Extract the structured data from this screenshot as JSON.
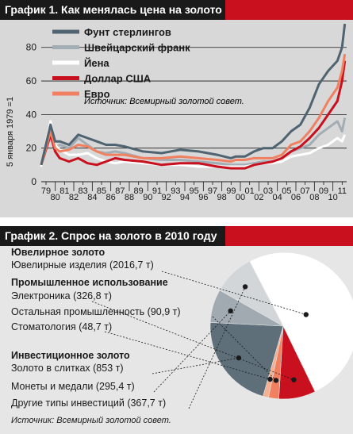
{
  "chart1": {
    "title": "График 1. Как менялась цена на золото",
    "ylabel": "5 января 1979 =1",
    "source": "Источник: Всемирный золотой совет.",
    "legend": [
      {
        "label": "Фунт стерлингов",
        "color": "#4f6470"
      },
      {
        "label": "Швейцарский франк",
        "color": "#a3adb4"
      },
      {
        "label": "Йена",
        "color": "#ffffff"
      },
      {
        "label": "Доллар США",
        "color": "#c8101e"
      },
      {
        "label": "Евро",
        "color": "#f08060"
      }
    ]
  },
  "chart_data": [
    {
      "type": "line",
      "title": "График 1. Как менялась цена на золото",
      "ylabel": "5 января 1979 =1",
      "xlabel": "",
      "ylim": [
        0,
        95
      ],
      "xlim": [
        1979,
        2012
      ],
      "yticks": [
        0,
        20,
        40,
        60,
        80
      ],
      "xticks": [
        "79",
        "80",
        "81",
        "82",
        "83",
        "84",
        "85",
        "86",
        "87",
        "88",
        "89",
        "90",
        "91",
        "92",
        "93",
        "94",
        "95",
        "96",
        "97",
        "98",
        "99",
        "00",
        "01",
        "02",
        "03",
        "04",
        "05",
        "06",
        "07",
        "08",
        "09",
        "10",
        "11"
      ],
      "legend_position": "top",
      "grid": "horizontal",
      "series": [
        {
          "name": "Швейцарский франк",
          "color": "#a3adb4",
          "x": [
            1979,
            1980,
            1980.5,
            1981,
            1982,
            1983,
            1984,
            1985,
            1986,
            1987,
            1988,
            1990,
            1992,
            1994,
            1996,
            1998,
            1999.5,
            2000,
            2001,
            2002,
            2003,
            2004,
            2005,
            2006,
            2007,
            2008,
            2009,
            2010,
            2011,
            2011.5,
            2011.8
          ],
          "values": [
            10,
            32,
            20,
            22,
            20,
            26,
            22,
            18,
            17,
            18,
            17,
            14,
            13,
            13,
            12,
            11,
            10,
            10,
            10,
            11,
            12,
            12,
            14,
            18,
            20,
            22,
            28,
            32,
            36,
            30,
            38
          ]
        },
        {
          "name": "Йена",
          "color": "#ffffff",
          "x": [
            1979,
            1980,
            1980.5,
            1981,
            1982,
            1983,
            1984,
            1985,
            1986,
            1987,
            1988,
            1990,
            1992,
            1994,
            1996,
            1998,
            1999.5,
            2000,
            2001,
            2002,
            2003,
            2004,
            2005,
            2006,
            2007,
            2008,
            2009,
            2010,
            2011,
            2011.5,
            2011.8
          ],
          "values": [
            9,
            36,
            22,
            19,
            16,
            16,
            17,
            14,
            12,
            11,
            12,
            11,
            10,
            10,
            9,
            9,
            9,
            9,
            9,
            10,
            11,
            11,
            12,
            15,
            16,
            17,
            20,
            22,
            26,
            24,
            28
          ]
        },
        {
          "name": "Доллар США",
          "color": "#c8101e",
          "x": [
            1979,
            1980,
            1980.5,
            1981,
            1982,
            1983,
            1984,
            1985,
            1986,
            1987,
            1988,
            1990,
            1992,
            1994,
            1996,
            1998,
            1999.5,
            2000,
            2001,
            2002,
            2003,
            2004,
            2005,
            2006,
            2007,
            2008,
            2009,
            2010,
            2011,
            2011.5,
            2011.8
          ],
          "values": [
            10,
            28,
            18,
            14,
            12,
            14,
            11,
            10,
            12,
            14,
            13,
            12,
            10,
            11,
            11,
            9,
            8,
            8,
            8,
            10,
            11,
            12,
            14,
            18,
            21,
            26,
            32,
            40,
            48,
            60,
            72
          ]
        },
        {
          "name": "Евро",
          "color": "#f08060",
          "x": [
            1979,
            1980,
            1980.5,
            1981,
            1982,
            1983,
            1984,
            1985,
            1986,
            1987,
            1988,
            1990,
            1992,
            1994,
            1996,
            1998,
            1999.5,
            2000,
            2001,
            2002,
            2003,
            2004,
            2005,
            2006,
            2007,
            2008,
            2009,
            2010,
            2011,
            2011.5,
            2011.8
          ],
          "values": [
            10,
            30,
            20,
            18,
            19,
            22,
            21,
            18,
            16,
            16,
            16,
            14,
            14,
            15,
            14,
            13,
            12,
            13,
            13,
            14,
            14,
            14,
            16,
            22,
            24,
            30,
            38,
            48,
            56,
            66,
            76
          ]
        },
        {
          "name": "Фунт стерлингов",
          "color": "#4f6470",
          "x": [
            1979,
            1980,
            1980.5,
            1981,
            1982,
            1983,
            1984,
            1985,
            1986,
            1987,
            1988,
            1990,
            1992,
            1994,
            1996,
            1998,
            1999.5,
            2000,
            2001,
            2002,
            2003,
            2004,
            2005,
            2006,
            2007,
            2008,
            2009,
            2010,
            2011,
            2011.5,
            2011.8
          ],
          "values": [
            10,
            34,
            24,
            24,
            22,
            28,
            26,
            24,
            22,
            22,
            21,
            18,
            17,
            19,
            18,
            16,
            14,
            15,
            15,
            18,
            20,
            20,
            24,
            30,
            34,
            44,
            58,
            66,
            72,
            80,
            94
          ]
        }
      ]
    },
    {
      "type": "pie",
      "title": "График 2. Спрос на золото в 2010 году",
      "categories": [
        "Ювелирные изделия",
        "Электроника",
        "Остальная промышленность",
        "Стоматология",
        "Золото в слитках",
        "Монеты и медали",
        "Другие типы инвестиций"
      ],
      "values": [
        2016.7,
        326.8,
        90.9,
        48.7,
        853,
        295.4,
        367.7
      ],
      "unit": "т"
    }
  ],
  "chart2": {
    "title": "График 2. Спрос на золото в 2010 году",
    "source": "Источник: Всемирный золотой совет.",
    "groups": [
      {
        "heading": "Ювелирное золото",
        "items": [
          "Ювелирные изделия (2016,7 т)"
        ]
      },
      {
        "heading": "Промышленное использование",
        "items": [
          "Электроника (326,8 т)",
          "Остальная промышленность (90,9 т)",
          "Стоматология (48,7 т)"
        ]
      },
      {
        "heading": "Инвестиционное золото",
        "items": [
          "Золото в слитках (853 т)",
          "Монеты и медали (295,4 т)",
          "Другие типы инвестиций (367,7 т)"
        ]
      }
    ],
    "slice_colors": [
      "#ffffff",
      "#c8101e",
      "#f08060",
      "#f4b090",
      "#5e6f7a",
      "#a0aab0",
      "#d2d6d9"
    ]
  }
}
